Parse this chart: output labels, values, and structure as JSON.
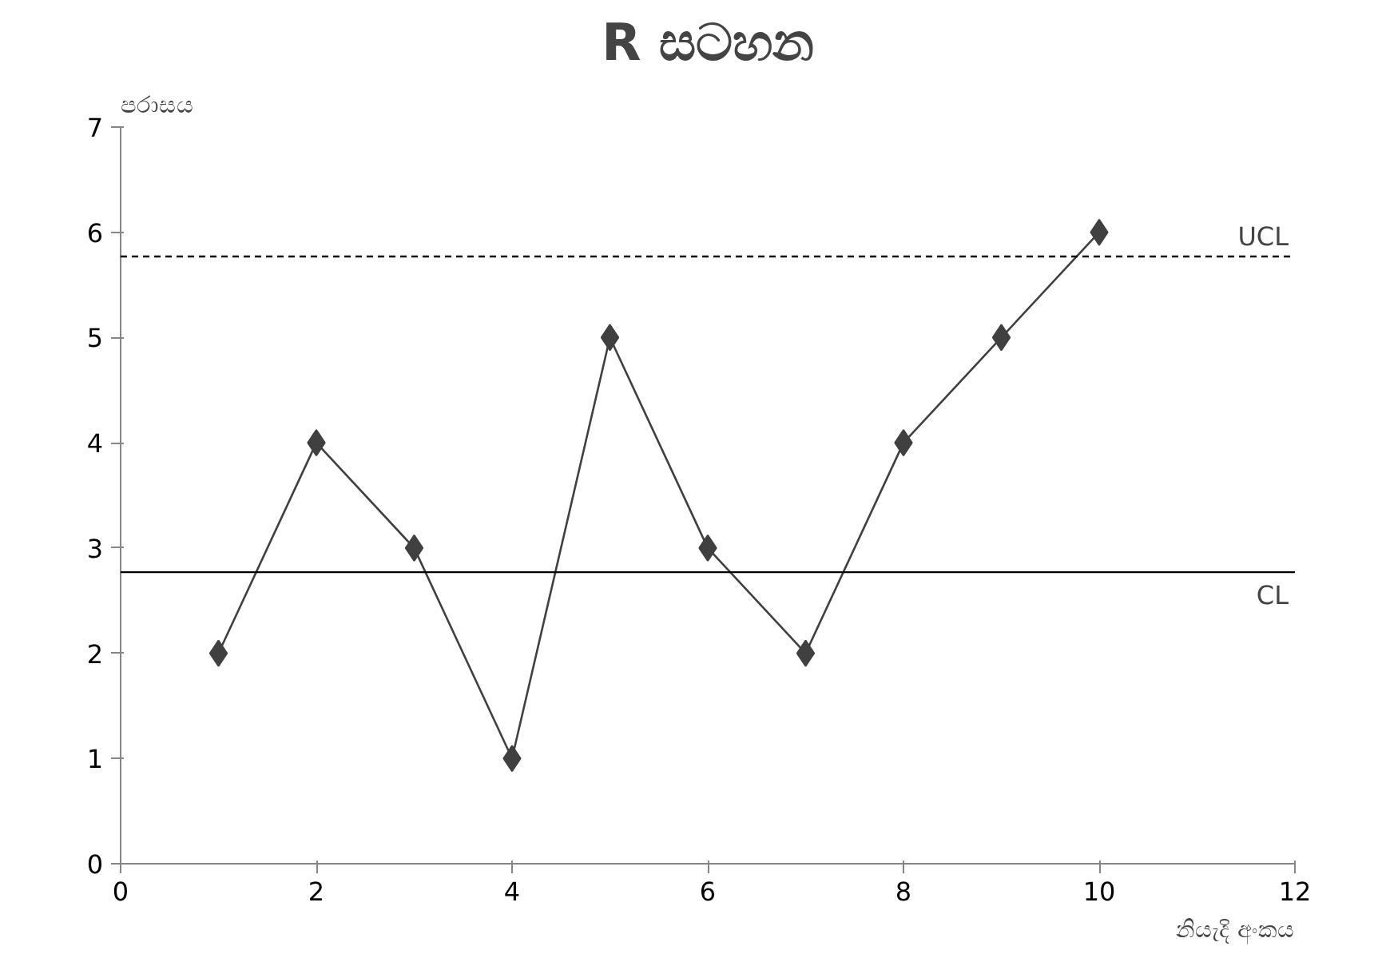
{
  "chart_data": {
    "type": "line",
    "title": "R සටහන",
    "xlabel": "නියැදි අංකය",
    "ylabel": "පරාසය",
    "x": [
      1,
      2,
      3,
      4,
      5,
      6,
      7,
      8,
      9,
      10
    ],
    "series": [
      {
        "color": "#404040",
        "values": [
          2,
          4,
          3,
          1,
          5,
          3,
          2,
          4,
          5,
          6
        ]
      }
    ],
    "marker": "diamond",
    "line_style": "solid",
    "grid": false,
    "xlim": [
      0,
      12
    ],
    "xticks": [
      0,
      2,
      4,
      6,
      8,
      10,
      12
    ],
    "ylim": [
      0,
      7
    ],
    "yticks": [
      0,
      1,
      2,
      3,
      4,
      5,
      6,
      7
    ],
    "ref_lines": [
      {
        "axis": "y",
        "value": 5.77,
        "label": "UCL",
        "line_style": "dashed"
      },
      {
        "axis": "y",
        "value": 2.77,
        "label": "CL",
        "line_style": "solid"
      }
    ]
  }
}
